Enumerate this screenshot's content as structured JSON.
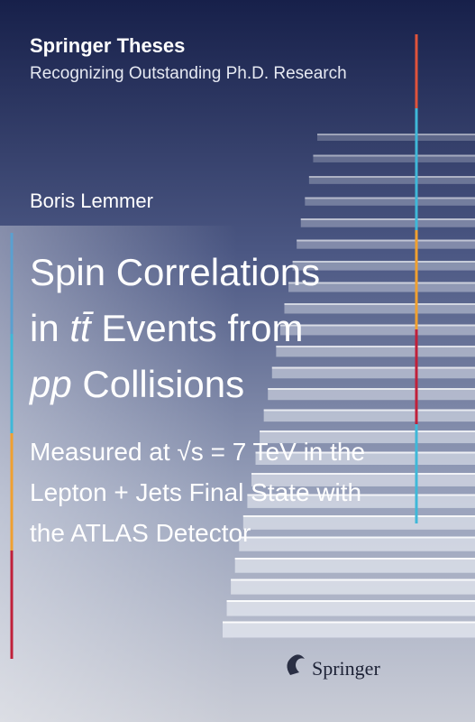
{
  "series": "Springer Theses",
  "series_subtitle": "Recognizing Outstanding Ph.D. Research",
  "author": "Boris Lemmer",
  "title_lines": [
    [
      {
        "text": "Spin Correlations"
      }
    ],
    [
      {
        "text": "in "
      },
      {
        "text": "tt̄",
        "italic": true
      },
      {
        "text": " Events from"
      }
    ],
    [
      {
        "text": "pp",
        "italic": true
      },
      {
        "text": " Collisions"
      }
    ]
  ],
  "subtitle_lines": [
    [
      {
        "text": "Measured at "
      },
      {
        "text": "√s",
        "italic": false
      },
      {
        "text": " = 7 TeV in the"
      }
    ],
    [
      {
        "text": "Lepton + Jets Final State with"
      }
    ],
    [
      {
        "text": "the ATLAS Detector"
      }
    ]
  ],
  "publisher": "Springer"
}
